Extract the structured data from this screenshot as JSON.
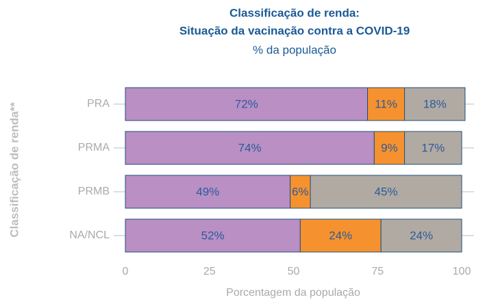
{
  "chart_data": {
    "type": "stacked-bar-horizontal",
    "title": [
      "Classificação de renda:",
      "Situação da vacinação contra a COVID-19"
    ],
    "subtitle": "% da população",
    "x_label": "Porcentagem da população",
    "y_label": "Classificação de renda**",
    "categories": [
      "PRA",
      "PRMA",
      "PRMB",
      "NA/NCL"
    ],
    "series": [
      {
        "color": "#b98fc4",
        "values": [
          72,
          74,
          49,
          52
        ],
        "value_labels": [
          "72%",
          "74%",
          "49%",
          "52%"
        ]
      },
      {
        "color": "#f5922f",
        "values": [
          11,
          9,
          6,
          24
        ],
        "value_labels": [
          "11%",
          "9%",
          "6%",
          "24%"
        ]
      },
      {
        "color": "#b1aaa3",
        "values": [
          18,
          17,
          45,
          24
        ],
        "value_labels": [
          "18%",
          "17%",
          "45%",
          "24%"
        ]
      }
    ],
    "xlim": [
      0,
      100
    ],
    "xticks": [
      0,
      25,
      50,
      75,
      100
    ],
    "grid": false
  }
}
